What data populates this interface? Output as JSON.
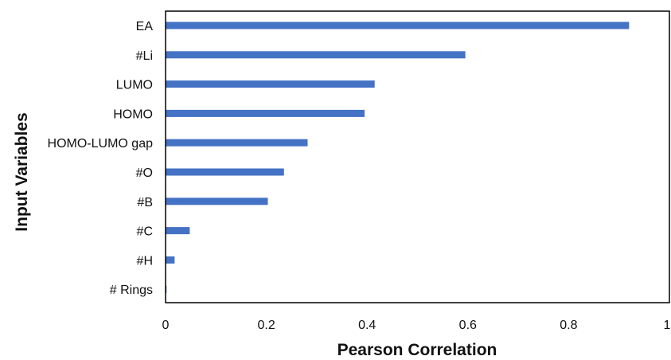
{
  "chart_data": {
    "type": "bar",
    "orientation": "horizontal",
    "categories": [
      "EA",
      "#Li",
      "LUMO",
      "HOMO",
      "HOMO-LUMO gap",
      "#O",
      "#B",
      "#C",
      "#H",
      "# Rings"
    ],
    "values": [
      0.92,
      0.595,
      0.415,
      0.395,
      0.282,
      0.235,
      0.203,
      0.048,
      0.018,
      0.002
    ],
    "xlabel": "Pearson Correlation",
    "ylabel": "Input Variables",
    "xlim": [
      0,
      1
    ],
    "xticks": [
      "0",
      "0.2",
      "0.4",
      "0.6",
      "0.8",
      "1"
    ],
    "grid": false,
    "bar_color": "#4472C4"
  }
}
